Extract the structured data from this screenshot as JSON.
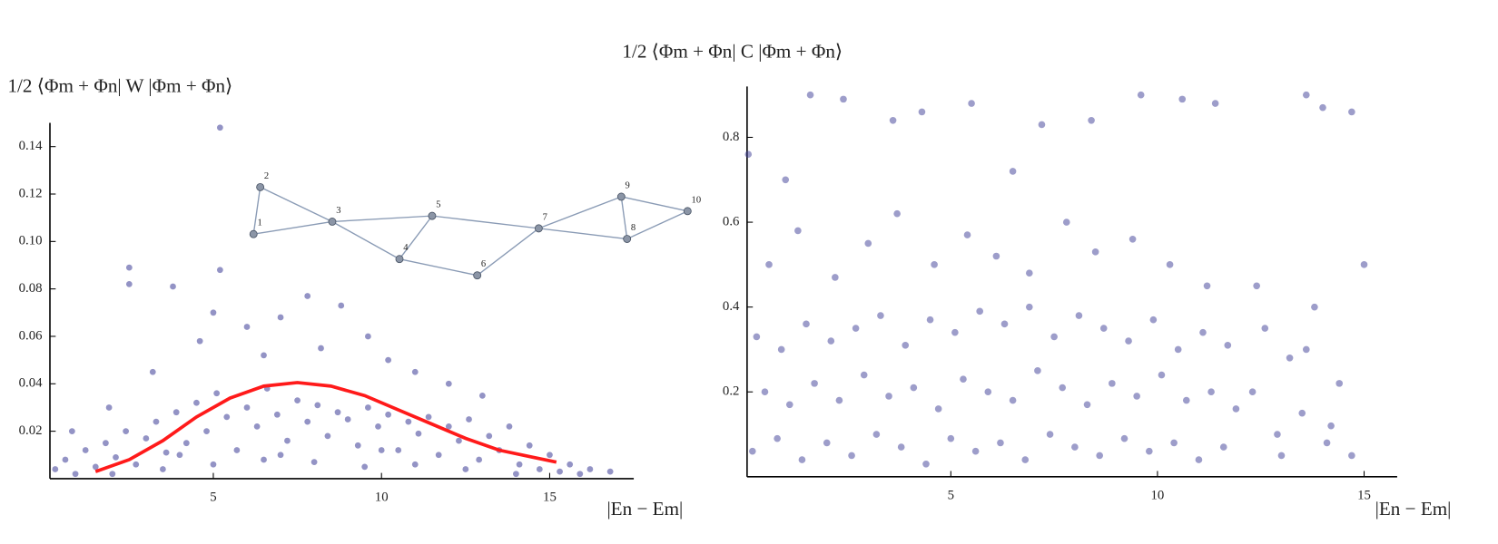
{
  "chart_data": [
    {
      "type": "scatter",
      "y_label": "1/2 ⟨Φm + Φn| W |Φm + Φn⟩",
      "x_label": "|En − Em|",
      "xlim": [
        0,
        17.5
      ],
      "ylim": [
        0,
        0.15
      ],
      "xticks": [
        5,
        10,
        15
      ],
      "yticks": [
        0.02,
        0.04,
        0.06,
        0.08,
        {
          "value": 0.1,
          "label": "0.10"
        },
        0.12,
        0.14
      ],
      "graph_labels": [
        "1",
        "2",
        "3",
        "4",
        "5",
        "6",
        "7",
        "8",
        "9",
        "10"
      ],
      "series": [
        {
          "color": "#3b3b96",
          "x": [
            0.3,
            0.6,
            0.9,
            1.2,
            1.5,
            1.8,
            2.1,
            2.4,
            2.7,
            3.0,
            3.3,
            3.6,
            3.9,
            4.2,
            4.5,
            4.8,
            5.1,
            5.4,
            5.7,
            6.0,
            6.3,
            6.6,
            6.9,
            7.2,
            7.5,
            7.8,
            8.1,
            8.4,
            8.7,
            9.0,
            9.3,
            9.6,
            9.9,
            10.2,
            10.5,
            10.8,
            11.1,
            11.4,
            11.7,
            12.0,
            12.3,
            12.6,
            12.9,
            13.2,
            13.5,
            13.8,
            14.1,
            14.4,
            14.7,
            15.0,
            15.3,
            15.6,
            15.9,
            16.2,
            16.8,
            2.0,
            3.5,
            5.0,
            6.5,
            8.0,
            9.5,
            11.0,
            12.5,
            14.0,
            4.0,
            7.0,
            10.0,
            2.5,
            2.5,
            3.8,
            5.2,
            5.2,
            5.0,
            4.6,
            6.0,
            7.0,
            7.8,
            8.8,
            9.6,
            10.2,
            6.5,
            8.2,
            11.0,
            12.0,
            3.2,
            1.9,
            0.8,
            13.0
          ],
          "values": [
            0.004,
            0.008,
            0.002,
            0.012,
            0.005,
            0.015,
            0.009,
            0.02,
            0.006,
            0.017,
            0.024,
            0.011,
            0.028,
            0.015,
            0.032,
            0.02,
            0.036,
            0.026,
            0.012,
            0.03,
            0.022,
            0.038,
            0.027,
            0.016,
            0.033,
            0.024,
            0.031,
            0.018,
            0.028,
            0.025,
            0.014,
            0.03,
            0.022,
            0.027,
            0.012,
            0.024,
            0.019,
            0.026,
            0.01,
            0.022,
            0.016,
            0.025,
            0.008,
            0.018,
            0.012,
            0.022,
            0.006,
            0.014,
            0.004,
            0.01,
            0.003,
            0.006,
            0.002,
            0.004,
            0.003,
            0.002,
            0.004,
            0.006,
            0.008,
            0.007,
            0.005,
            0.006,
            0.004,
            0.002,
            0.01,
            0.01,
            0.012,
            0.089,
            0.082,
            0.081,
            0.148,
            0.088,
            0.07,
            0.058,
            0.064,
            0.068,
            0.077,
            0.073,
            0.06,
            0.05,
            0.052,
            0.055,
            0.045,
            0.04,
            0.045,
            0.03,
            0.02,
            0.035
          ]
        },
        {
          "type": "line",
          "color": "#ff1a1a",
          "x": [
            1.5,
            2.5,
            3.5,
            4.5,
            5.5,
            6.5,
            7.5,
            8.5,
            9.5,
            10.5,
            11.5,
            12.5,
            13.5,
            14.5,
            15.2
          ],
          "values": [
            0.003,
            0.008,
            0.016,
            0.026,
            0.034,
            0.039,
            0.0405,
            0.039,
            0.035,
            0.029,
            0.023,
            0.017,
            0.012,
            0.009,
            0.007
          ]
        }
      ]
    },
    {
      "type": "scatter",
      "y_label": "1/2 ⟨Φm + Φn| C |Φm + Φn⟩",
      "x_label": "|En − Em|",
      "xlim": [
        0,
        15.8
      ],
      "ylim": [
        0,
        0.92
      ],
      "xticks": [
        5,
        10,
        15
      ],
      "yticks": [
        0.2,
        0.4,
        0.6,
        0.8
      ],
      "series": [
        {
          "color": "#3b3b96",
          "x": [
            0.2,
            0.8,
            1.4,
            2.0,
            2.6,
            3.2,
            3.8,
            4.4,
            5.0,
            5.6,
            6.2,
            6.8,
            7.4,
            8.0,
            8.6,
            9.2,
            9.8,
            10.4,
            11.0,
            11.6,
            0.5,
            1.1,
            1.7,
            2.3,
            2.9,
            3.5,
            4.1,
            4.7,
            5.3,
            5.9,
            6.5,
            7.1,
            7.7,
            8.3,
            8.9,
            9.5,
            10.1,
            10.7,
            11.3,
            11.9,
            0.3,
            0.9,
            1.5,
            2.1,
            2.7,
            3.3,
            3.9,
            4.5,
            5.1,
            5.7,
            6.3,
            6.9,
            7.5,
            8.1,
            8.7,
            9.3,
            9.9,
            10.5,
            11.1,
            11.7,
            0.6,
            1.3,
            2.2,
            3.0,
            3.7,
            4.6,
            5.4,
            6.1,
            6.9,
            7.8,
            8.5,
            9.4,
            10.3,
            11.2,
            12.3,
            12.6,
            12.9,
            13.2,
            13.5,
            13.8,
            14.1,
            14.4,
            14.7,
            15.0,
            12.4,
            13.0,
            13.6,
            14.2,
            0.1,
            1.6,
            2.4,
            3.6,
            4.3,
            5.5,
            7.2,
            8.4,
            9.6,
            10.6,
            11.4,
            13.6,
            14.0,
            14.7,
            1.0,
            6.5
          ],
          "values": [
            0.06,
            0.09,
            0.04,
            0.08,
            0.05,
            0.1,
            0.07,
            0.03,
            0.09,
            0.06,
            0.08,
            0.04,
            0.1,
            0.07,
            0.05,
            0.09,
            0.06,
            0.08,
            0.04,
            0.07,
            0.2,
            0.17,
            0.22,
            0.18,
            0.24,
            0.19,
            0.21,
            0.16,
            0.23,
            0.2,
            0.18,
            0.25,
            0.21,
            0.17,
            0.22,
            0.19,
            0.24,
            0.18,
            0.2,
            0.16,
            0.33,
            0.3,
            0.36,
            0.32,
            0.35,
            0.38,
            0.31,
            0.37,
            0.34,
            0.39,
            0.36,
            0.4,
            0.33,
            0.38,
            0.35,
            0.32,
            0.37,
            0.3,
            0.34,
            0.31,
            0.5,
            0.58,
            0.47,
            0.55,
            0.62,
            0.5,
            0.57,
            0.52,
            0.48,
            0.6,
            0.53,
            0.56,
            0.5,
            0.45,
            0.2,
            0.35,
            0.1,
            0.28,
            0.15,
            0.4,
            0.08,
            0.22,
            0.05,
            0.5,
            0.45,
            0.05,
            0.3,
            0.12,
            0.76,
            0.9,
            0.89,
            0.84,
            0.86,
            0.88,
            0.83,
            0.84,
            0.9,
            0.89,
            0.88,
            0.9,
            0.87,
            0.86,
            0.7,
            0.72
          ]
        }
      ]
    }
  ]
}
